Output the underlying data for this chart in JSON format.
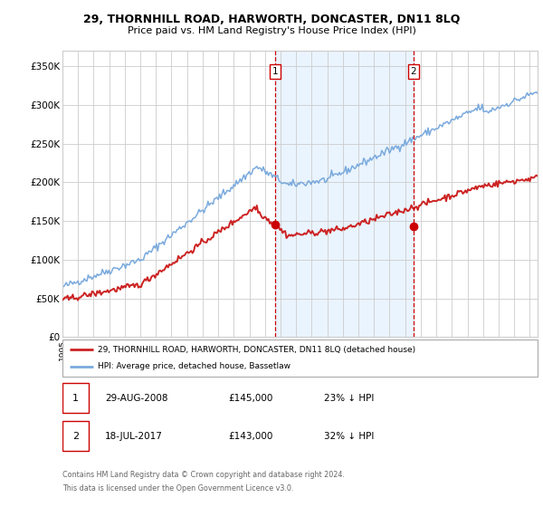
{
  "title": "29, THORNHILL ROAD, HARWORTH, DONCASTER, DN11 8LQ",
  "subtitle": "Price paid vs. HM Land Registry's House Price Index (HPI)",
  "ylabel_ticks": [
    "£0",
    "£50K",
    "£100K",
    "£150K",
    "£200K",
    "£250K",
    "£300K",
    "£350K"
  ],
  "ytick_values": [
    0,
    50000,
    100000,
    150000,
    200000,
    250000,
    300000,
    350000
  ],
  "ylim": [
    0,
    370000
  ],
  "xlim_start": 1995.0,
  "xlim_end": 2025.5,
  "marker1": {
    "x": 2008.66,
    "label": "1",
    "price": 145000,
    "date": "29-AUG-2008",
    "pct": "23%"
  },
  "marker2": {
    "x": 2017.54,
    "label": "2",
    "price": 143000,
    "date": "18-JUL-2017",
    "pct": "32%"
  },
  "legend_line1": "29, THORNHILL ROAD, HARWORTH, DONCASTER, DN11 8LQ (detached house)",
  "legend_line2": "HPI: Average price, detached house, Bassetlaw",
  "footer1": "Contains HM Land Registry data © Crown copyright and database right 2024.",
  "footer2": "This data is licensed under the Open Government Licence v3.0.",
  "hpi_color": "#7aaadd",
  "price_color": "#cc2222",
  "marker_color": "#cc0000",
  "shade_color": "#ddeeff",
  "background_color": "#ffffff",
  "grid_color": "#cccccc",
  "noise_seed": 42,
  "noise_scale_hpi": 2500,
  "noise_scale_price": 2000
}
